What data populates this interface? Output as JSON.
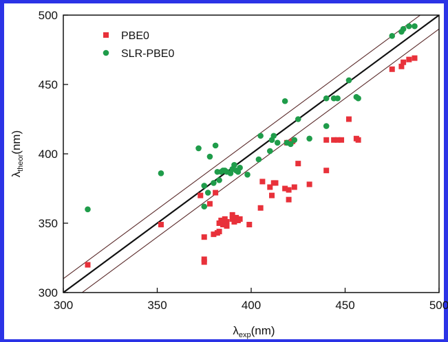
{
  "chart_data": {
    "type": "scatter",
    "xlabel": "λexp(nm)",
    "xlabel_parts": {
      "symbol": "λ",
      "sub": "exp",
      "unit": "(nm)"
    },
    "ylabel": "λtheor(nm)",
    "ylabel_parts": {
      "symbol": "λ",
      "sub": "theor",
      "unit": "(nm)"
    },
    "xlim": [
      300,
      500
    ],
    "ylim": [
      300,
      500
    ],
    "x_ticks": [
      "300",
      "350",
      "400",
      "450",
      "500"
    ],
    "y_ticks": [
      "300",
      "350",
      "400",
      "450",
      "500"
    ],
    "legend": {
      "position": "top-left"
    },
    "series": [
      {
        "name": "PBE0",
        "color": "#e8313a",
        "marker": "square",
        "points": [
          [
            313,
            320
          ],
          [
            352,
            349
          ],
          [
            373,
            370
          ],
          [
            375,
            340
          ],
          [
            375,
            324
          ],
          [
            375,
            322
          ],
          [
            378,
            364
          ],
          [
            380,
            342
          ],
          [
            381,
            372
          ],
          [
            382,
            343
          ],
          [
            383,
            350
          ],
          [
            383,
            344
          ],
          [
            384,
            352
          ],
          [
            385,
            349
          ],
          [
            386,
            353
          ],
          [
            386,
            350
          ],
          [
            387,
            351
          ],
          [
            387,
            348
          ],
          [
            390,
            356
          ],
          [
            390,
            353
          ],
          [
            391,
            351
          ],
          [
            392,
            354
          ],
          [
            393,
            352
          ],
          [
            394,
            353
          ],
          [
            399,
            349
          ],
          [
            405,
            361
          ],
          [
            406,
            380
          ],
          [
            410,
            376
          ],
          [
            411,
            370
          ],
          [
            412,
            379
          ],
          [
            413,
            379
          ],
          [
            418,
            375
          ],
          [
            419,
            408
          ],
          [
            420,
            367
          ],
          [
            420,
            374
          ],
          [
            422,
            409
          ],
          [
            423,
            376
          ],
          [
            425,
            393
          ],
          [
            431,
            378
          ],
          [
            440,
            388
          ],
          [
            440,
            410
          ],
          [
            444,
            410
          ],
          [
            446,
            410
          ],
          [
            448,
            410
          ],
          [
            452,
            425
          ],
          [
            456,
            411
          ],
          [
            457,
            410
          ],
          [
            475,
            461
          ],
          [
            480,
            463
          ],
          [
            481,
            466
          ],
          [
            484,
            468
          ],
          [
            487,
            469
          ]
        ]
      },
      {
        "name": "SLR-PBE0",
        "color": "#1f9c4a",
        "marker": "circle",
        "points": [
          [
            313,
            360
          ],
          [
            352,
            386
          ],
          [
            372,
            404
          ],
          [
            375,
            377
          ],
          [
            375,
            362
          ],
          [
            377,
            372
          ],
          [
            378,
            398
          ],
          [
            380,
            379
          ],
          [
            381,
            406
          ],
          [
            382,
            387
          ],
          [
            383,
            381
          ],
          [
            384,
            387
          ],
          [
            385,
            388
          ],
          [
            386,
            388
          ],
          [
            387,
            387
          ],
          [
            389,
            386
          ],
          [
            390,
            389
          ],
          [
            391,
            392
          ],
          [
            392,
            388
          ],
          [
            393,
            387
          ],
          [
            394,
            390
          ],
          [
            398,
            385
          ],
          [
            404,
            396
          ],
          [
            405,
            413
          ],
          [
            410,
            402
          ],
          [
            411,
            410
          ],
          [
            412,
            413
          ],
          [
            414,
            408
          ],
          [
            418,
            438
          ],
          [
            419,
            408
          ],
          [
            421,
            407
          ],
          [
            423,
            410
          ],
          [
            425,
            425
          ],
          [
            431,
            411
          ],
          [
            440,
            420
          ],
          [
            440,
            440
          ],
          [
            444,
            440
          ],
          [
            446,
            440
          ],
          [
            452,
            453
          ],
          [
            456,
            441
          ],
          [
            457,
            440
          ],
          [
            475,
            485
          ],
          [
            480,
            488
          ],
          [
            481,
            490
          ],
          [
            484,
            492
          ],
          [
            487,
            492
          ]
        ]
      }
    ],
    "reference_lines": [
      {
        "style": "thick",
        "color": "#111111",
        "offset": 0
      },
      {
        "style": "thin",
        "color": "#5a2a2a",
        "offset": 10
      },
      {
        "style": "thin",
        "color": "#5a2a2a",
        "offset": -10
      }
    ]
  }
}
